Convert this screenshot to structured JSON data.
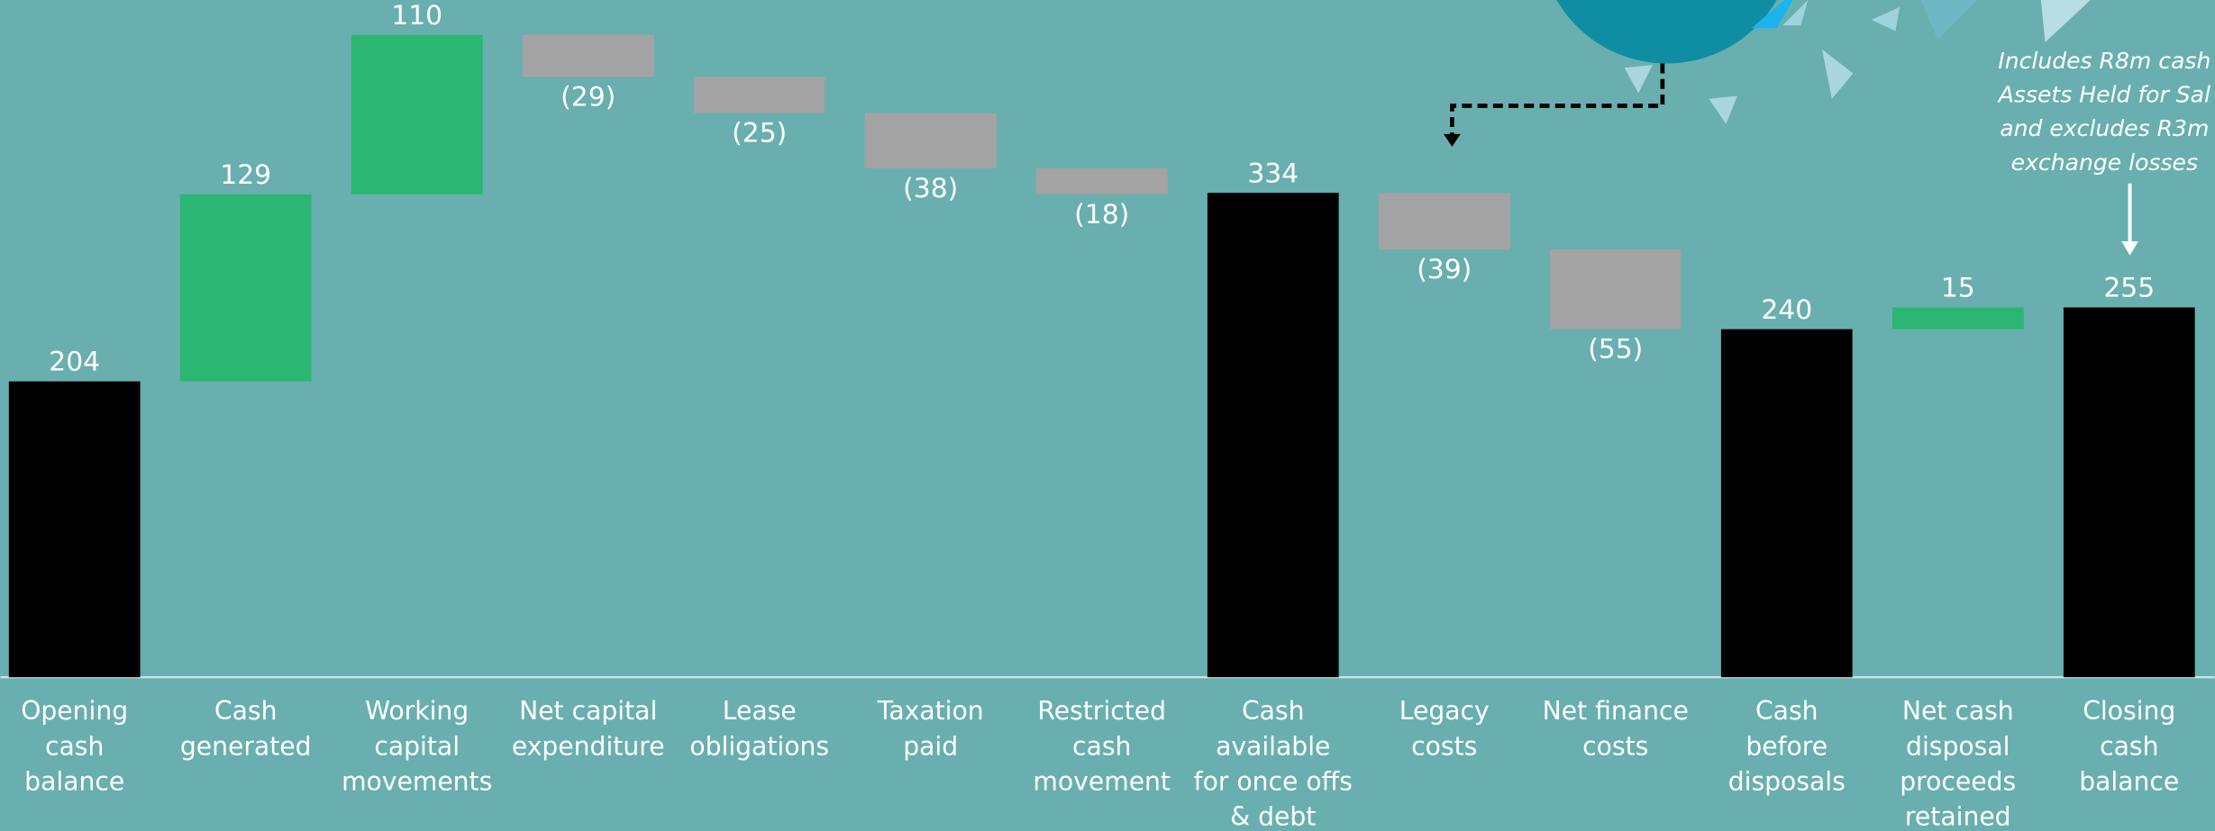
{
  "chart_data": {
    "type": "waterfall",
    "categories": [
      "Opening\ncash\nbalance",
      "Cash\ngenerated",
      "Working\ncapital\nmovements",
      "Net capital\nexpenditure",
      "Lease\nobligations",
      "Taxation\npaid",
      "Restricted\ncash\nmovement",
      "Cash available\nfor once offs\n& debt",
      "Legacy\ncosts",
      "Net finance\ncosts",
      "Cash\nbefore\ndisposals",
      "Net cash\ndisposal\nproceeds\nretained",
      "Closing\ncash\nbalance"
    ],
    "values": [
      204,
      129,
      110,
      -29,
      -25,
      -38,
      -18,
      334,
      -39,
      -55,
      240,
      15,
      255
    ],
    "value_labels": [
      "204",
      "129",
      "110",
      "(29)",
      "(25)",
      "(38)",
      "(18)",
      "334",
      "(39)",
      "(55)",
      "240",
      "15",
      "255"
    ],
    "total": [
      true,
      false,
      false,
      false,
      false,
      false,
      false,
      true,
      false,
      false,
      true,
      false,
      true
    ],
    "colors": {
      "total": "#000000",
      "increase": "#2bb673",
      "decrease": "#a3a3a3"
    },
    "ylim": [
      0,
      467
    ],
    "annotation": [
      "Includes R8m cash",
      "Assets Held for Sal",
      "and excludes R3m",
      "exchange losses"
    ]
  }
}
